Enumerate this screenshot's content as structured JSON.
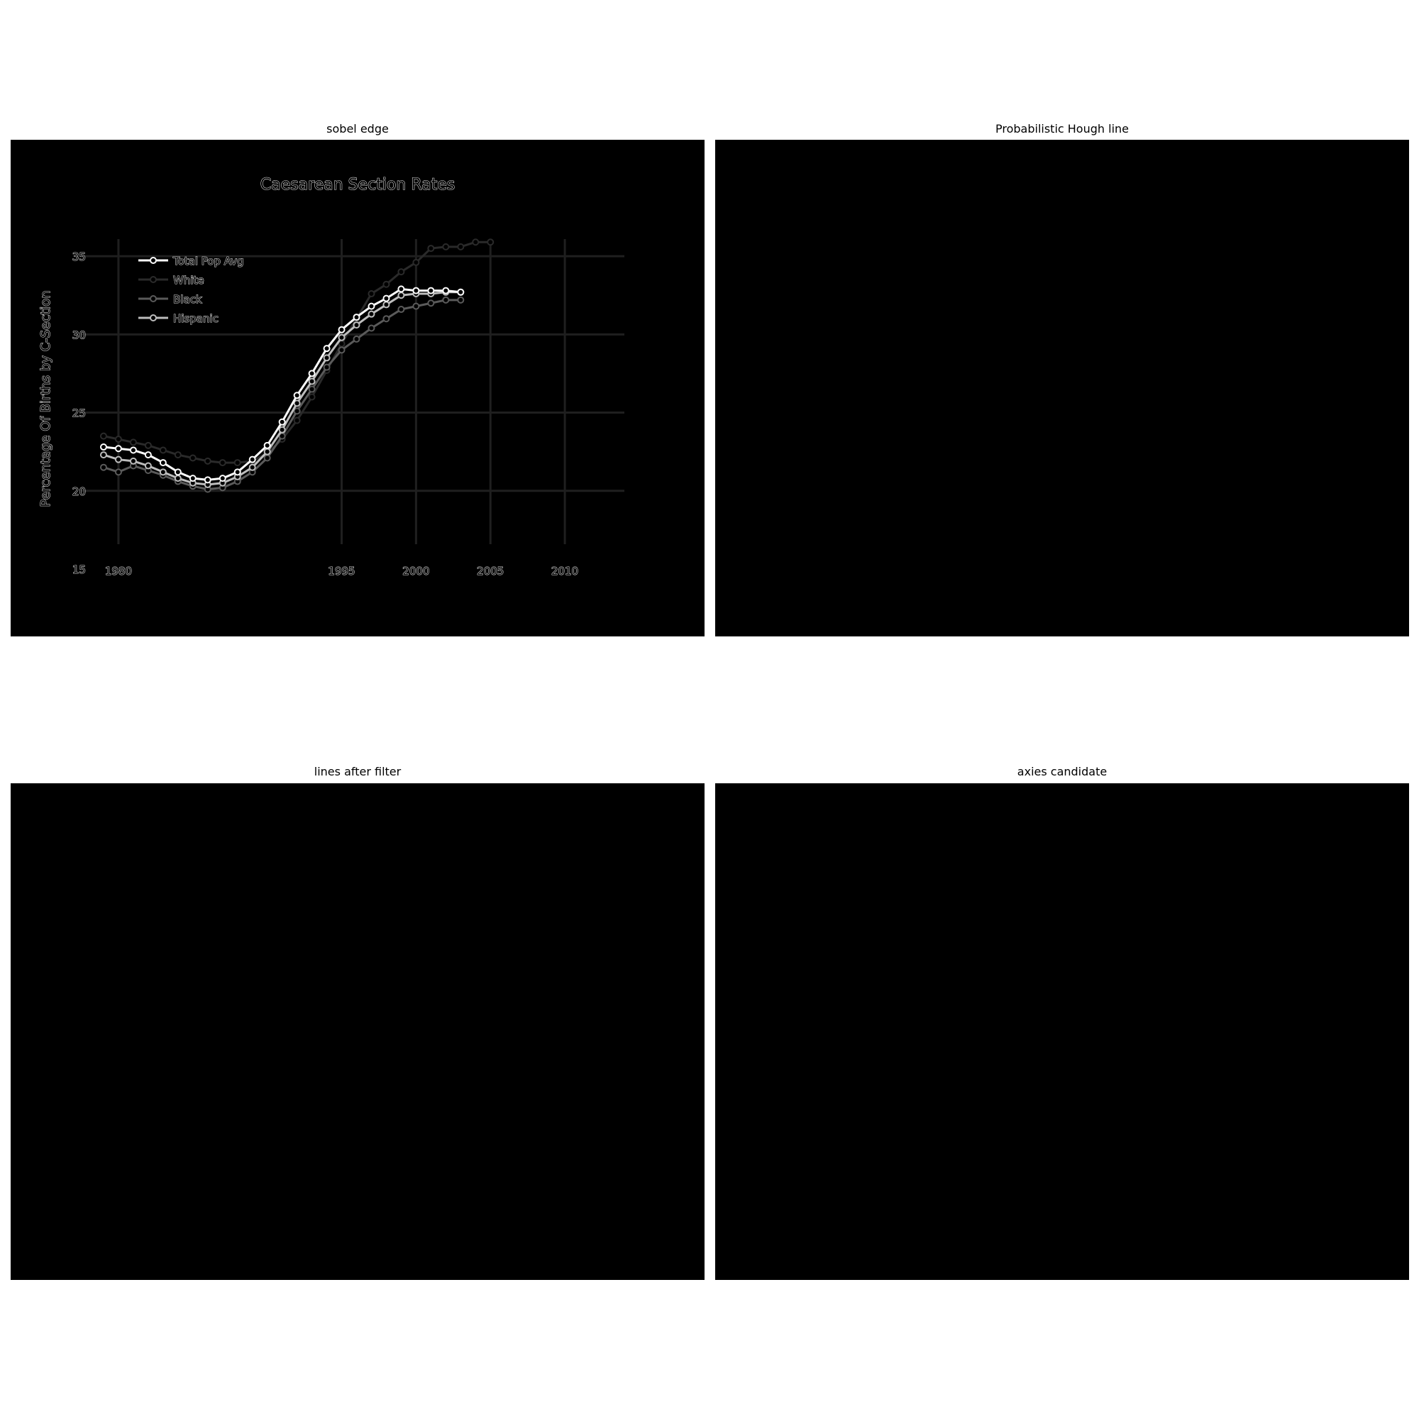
{
  "panels": {
    "sobel": "sobel edge",
    "hough": "Probabilistic Hough line",
    "filtered": "lines after filter",
    "axes": "axies candidate"
  },
  "chart_data": {
    "type": "line",
    "title": "Caesarean Section Rates",
    "xlabel": "",
    "ylabel": "Percentage Of Births by C-Section",
    "xlim": [
      1978,
      2014
    ],
    "ylim": [
      15,
      37
    ],
    "x_ticks": [
      1980,
      1995,
      2000,
      2005,
      2010
    ],
    "y_ticks": [
      15,
      20,
      25,
      30,
      35
    ],
    "grid": true,
    "legend_position": "top-left",
    "x": [
      1979,
      1980,
      1981,
      1982,
      1983,
      1984,
      1985,
      1986,
      1987,
      1988,
      1989,
      1990,
      1991,
      1992,
      1993,
      1994,
      1995,
      1996,
      1997,
      1998,
      1999,
      2000,
      2001,
      2002,
      2003,
      2004,
      2005
    ],
    "series": [
      {
        "name": "Total Pop Avg",
        "color": "#ffffff",
        "values": [
          22.8,
          22.7,
          22.6,
          22.3,
          21.8,
          21.2,
          20.8,
          20.7,
          20.8,
          21.2,
          22.0,
          22.9,
          24.4,
          26.1,
          27.5,
          29.1,
          30.3,
          31.1,
          31.8,
          32.3,
          32.9,
          32.8,
          32.8,
          32.8,
          32.7,
          null,
          null
        ]
      },
      {
        "name": "White",
        "color": "#2a2a2a",
        "values": [
          23.5,
          23.3,
          23.1,
          22.9,
          22.6,
          22.3,
          22.1,
          21.9,
          21.8,
          21.8,
          21.9,
          22.4,
          23.3,
          24.5,
          26.0,
          27.7,
          29.4,
          31.0,
          32.6,
          33.2,
          34.0,
          34.6,
          35.5,
          35.6,
          35.6,
          35.9,
          35.9
        ]
      },
      {
        "name": "Black",
        "color": "#5a5a5a",
        "values": [
          21.5,
          21.2,
          21.6,
          21.3,
          21.0,
          20.6,
          20.3,
          20.1,
          20.2,
          20.6,
          21.2,
          22.1,
          23.5,
          25.1,
          26.5,
          27.9,
          29.0,
          29.7,
          30.4,
          31.0,
          31.6,
          31.8,
          32.0,
          32.2,
          32.2,
          null,
          null
        ]
      },
      {
        "name": "Hispanic",
        "color": "#bdbdbd",
        "values": [
          22.3,
          22.0,
          21.9,
          21.6,
          21.2,
          20.8,
          20.5,
          20.4,
          20.5,
          20.9,
          21.5,
          22.5,
          23.9,
          25.6,
          27.0,
          28.5,
          29.8,
          30.6,
          31.3,
          31.9,
          32.5,
          32.6,
          32.6,
          32.7,
          32.7,
          null,
          null
        ]
      }
    ]
  }
}
